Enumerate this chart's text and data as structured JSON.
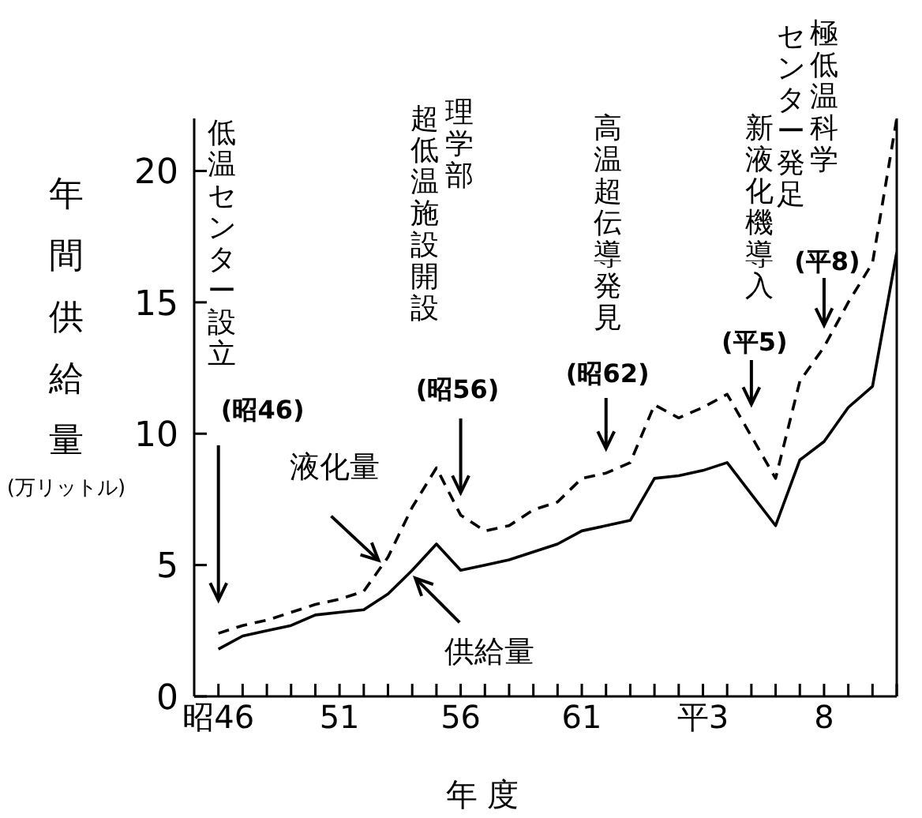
{
  "chart_data": {
    "type": "line",
    "xlabel": "年 度",
    "ylabel": "年間供給量(万リットル)",
    "categories": [
      "昭46",
      null,
      null,
      null,
      null,
      "51",
      null,
      null,
      null,
      null,
      "56",
      null,
      null,
      null,
      null,
      "61",
      null,
      null,
      null,
      null,
      "平3",
      null,
      null,
      null,
      null,
      "8",
      null,
      null,
      null
    ],
    "series": [
      {
        "name": "液化量",
        "color": "#000000",
        "line_style": "dashed",
        "values": [
          2.4,
          2.7,
          2.9,
          3.2,
          3.5,
          3.7,
          4.0,
          5.3,
          7.2,
          8.7,
          6.9,
          6.3,
          6.5,
          7.1,
          7.4,
          8.3,
          8.5,
          8.9,
          11.1,
          10.6,
          11.0,
          11.5,
          9.9,
          8.3,
          12.0,
          13.3,
          15.0,
          16.5,
          22.0
        ]
      },
      {
        "name": "供給量",
        "color": "#000000",
        "line_style": "solid",
        "values": [
          1.8,
          2.3,
          2.5,
          2.7,
          3.1,
          3.2,
          3.3,
          3.9,
          4.8,
          5.8,
          4.8,
          5.0,
          5.2,
          5.5,
          5.8,
          6.3,
          6.5,
          6.7,
          8.3,
          8.4,
          8.6,
          8.9,
          7.7,
          6.5,
          9.0,
          9.7,
          11.0,
          11.8,
          16.9
        ]
      }
    ],
    "ylim": [
      0,
      22
    ],
    "yticks": [
      0,
      5,
      10,
      15,
      20
    ],
    "annotations": [
      "低温センター設立",
      "(昭46)",
      "理学部超低温施設開設",
      "(昭56)",
      "高温超伝導発見",
      "(昭62)",
      "新液化機導入",
      "(平5)",
      "極低温科学センター発足",
      "(平8)"
    ]
  }
}
